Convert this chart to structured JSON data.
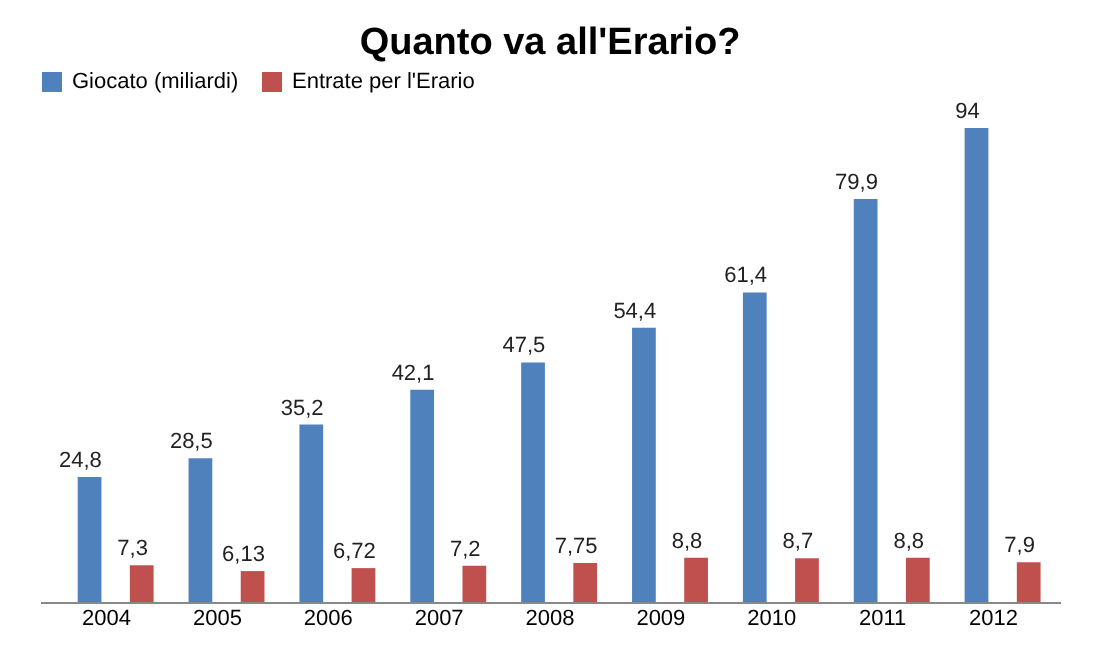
{
  "chart_data": {
    "type": "bar",
    "title": "Quanto va all'Erario?",
    "categories": [
      "2004",
      "2005",
      "2006",
      "2007",
      "2008",
      "2009",
      "2010",
      "2011",
      "2012"
    ],
    "series": [
      {
        "name": "Giocato (miliardi)",
        "color": "#4f81bd",
        "values": [
          24.8,
          28.5,
          35.2,
          42.1,
          47.5,
          54.4,
          61.4,
          79.9,
          94
        ],
        "value_labels": [
          "24,8",
          "28,5",
          "35,2",
          "42,1",
          "47,5",
          "54,4",
          "61,4",
          "79,9",
          "94"
        ]
      },
      {
        "name": "Entrate per l'Erario",
        "color": "#c0504d",
        "values": [
          7.3,
          6.13,
          6.72,
          7.2,
          7.75,
          8.8,
          8.7,
          8.8,
          7.9
        ],
        "value_labels": [
          "7,3",
          "6,13",
          "6,72",
          "7,2",
          "7,75",
          "8,8",
          "8,7",
          "8,8",
          "7,9"
        ]
      }
    ],
    "legend": "top",
    "grid": false,
    "tick_labels": "x"
  }
}
